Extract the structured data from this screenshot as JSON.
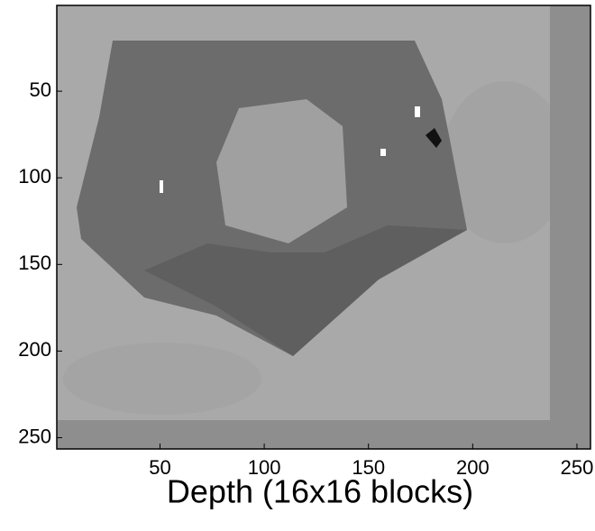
{
  "chart_data": {
    "type": "image",
    "xlabel": "Depth (16x16 blocks)",
    "xlim": [
      0.5,
      256.5
    ],
    "ylim": [
      0.5,
      256.5
    ],
    "yaxis_reversed": true,
    "xticks": [
      50,
      100,
      150,
      200,
      250
    ],
    "yticks": [
      50,
      100,
      150,
      200,
      250
    ]
  }
}
